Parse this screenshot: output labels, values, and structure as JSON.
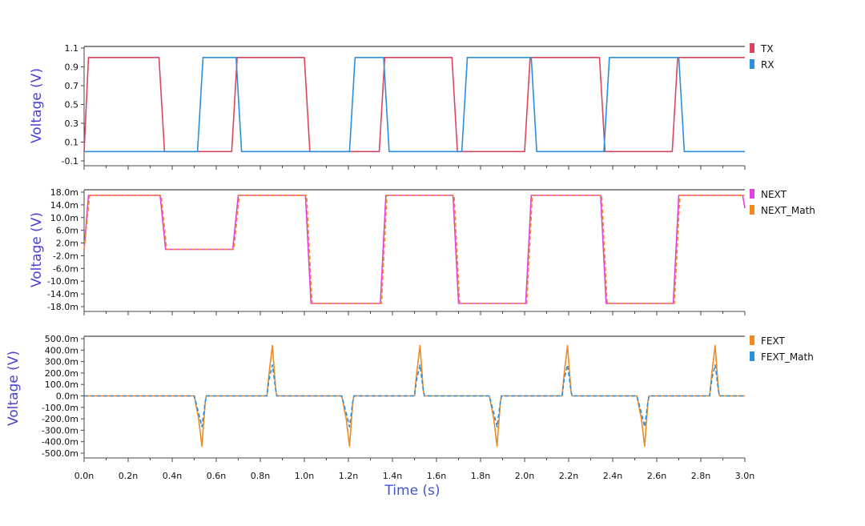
{
  "chart_data": [
    {
      "type": "line",
      "ylabel": "Voltage (V)",
      "y_ticks": [
        "1.1",
        "0.9",
        "0.7",
        "0.5",
        "0.3",
        "0.1",
        "-0.1"
      ],
      "ylim": [
        -0.1,
        1.1
      ],
      "xlim": [
        0,
        3.0
      ],
      "legend_position": "top-right",
      "series": [
        {
          "name": "TX",
          "color": "#d9455f",
          "style": "solid",
          "x": [
            0.0,
            0.02,
            0.035,
            0.34,
            0.365,
            0.67,
            0.695,
            1.0,
            1.025,
            1.34,
            1.365,
            1.67,
            1.695,
            2.0,
            2.025,
            2.34,
            2.365,
            2.67,
            2.695,
            3.0
          ],
          "y": [
            0.0,
            1.0,
            1.0,
            1.0,
            0.0,
            0.0,
            1.0,
            1.0,
            0.0,
            0.0,
            1.0,
            1.0,
            0.0,
            0.0,
            1.0,
            1.0,
            0.0,
            0.0,
            1.0,
            1.0
          ]
        },
        {
          "name": "RX",
          "color": "#2a8fe0",
          "style": "solid",
          "x": [
            0.0,
            0.37,
            0.515,
            0.54,
            0.69,
            0.715,
            1.03,
            1.205,
            1.23,
            1.36,
            1.385,
            1.7,
            1.715,
            1.74,
            2.03,
            2.055,
            2.36,
            2.385,
            2.7,
            2.725,
            3.0
          ],
          "y": [
            0.0,
            0.0,
            0.0,
            1.0,
            1.0,
            0.0,
            0.0,
            0.0,
            1.0,
            1.0,
            0.0,
            0.0,
            0.0,
            1.0,
            1.0,
            0.0,
            0.0,
            1.0,
            1.0,
            0.0,
            0.0
          ]
        }
      ]
    },
    {
      "type": "line",
      "ylabel": "Voltage (V)",
      "y_ticks": [
        "18.0m",
        "14.0m",
        "10.0m",
        "6.0m",
        "2.0m",
        "-2.0m",
        "-6.0m",
        "-10.0m",
        "-14.0m",
        "-18.0m"
      ],
      "ylim": [
        -0.018,
        0.018
      ],
      "xlim": [
        0,
        3.0
      ],
      "legend_position": "top-right",
      "series": [
        {
          "name": "NEXT",
          "color": "#e23fe0",
          "style": "solid",
          "x": [
            0.0,
            0.02,
            0.035,
            0.345,
            0.37,
            0.675,
            0.7,
            1.005,
            1.03,
            1.345,
            1.37,
            1.675,
            1.7,
            2.005,
            2.03,
            2.345,
            2.37,
            2.675,
            2.7,
            2.99,
            3.0
          ],
          "y": [
            0.0,
            0.017,
            0.017,
            0.017,
            0.0,
            0.0,
            0.017,
            0.017,
            -0.017,
            -0.017,
            0.017,
            0.017,
            -0.017,
            -0.017,
            0.017,
            0.017,
            -0.017,
            -0.017,
            0.017,
            0.017,
            0.013
          ]
        },
        {
          "name": "NEXT_Math",
          "color": "#f08a1c",
          "style": "dashed",
          "x": [
            0.0,
            0.025,
            0.04,
            0.35,
            0.375,
            0.68,
            0.705,
            1.01,
            1.035,
            1.35,
            1.375,
            1.68,
            1.705,
            2.01,
            2.035,
            2.35,
            2.375,
            2.68,
            2.705,
            3.0
          ],
          "y": [
            0.0,
            0.017,
            0.017,
            0.017,
            0.0,
            0.0,
            0.017,
            0.017,
            -0.017,
            -0.017,
            0.017,
            0.017,
            -0.017,
            -0.017,
            0.017,
            0.017,
            -0.017,
            -0.017,
            0.017,
            0.017
          ]
        }
      ]
    },
    {
      "type": "line",
      "xlabel": "Time (s)",
      "ylabel": "Voltage (V)",
      "x_ticks": [
        "0.0n",
        "0.2n",
        "0.4n",
        "0.6n",
        "0.8n",
        "1.0n",
        "1.2n",
        "1.4n",
        "1.6n",
        "1.8n",
        "2.0n",
        "2.2n",
        "2.4n",
        "2.6n",
        "2.8n",
        "3.0n"
      ],
      "y_ticks": [
        "500.0m",
        "400.0m",
        "300.0m",
        "200.0m",
        "100.0m",
        "0.0m",
        "-100.0m",
        "-200.0m",
        "-300.0m",
        "-400.0m",
        "-500.0m"
      ],
      "ylim": [
        -0.5,
        0.5
      ],
      "xlim": [
        0,
        3.0
      ],
      "legend_position": "top-right",
      "series": [
        {
          "name": "FEXT",
          "color": "#f08a1c",
          "style": "solid",
          "x": [
            0.0,
            0.5,
            0.52,
            0.535,
            0.55,
            0.555,
            0.83,
            0.84,
            0.855,
            0.87,
            0.875,
            1.17,
            1.19,
            1.205,
            1.22,
            1.225,
            1.5,
            1.51,
            1.525,
            1.54,
            1.545,
            1.84,
            1.86,
            1.875,
            1.89,
            1.895,
            2.17,
            2.18,
            2.195,
            2.21,
            2.215,
            2.51,
            2.53,
            2.545,
            2.56,
            2.565,
            2.84,
            2.85,
            2.865,
            2.88,
            2.885,
            3.0
          ],
          "y": [
            0.0,
            0.0,
            -0.2,
            -0.44,
            -0.05,
            0.0,
            0.0,
            0.2,
            0.44,
            0.05,
            0.0,
            0.0,
            -0.2,
            -0.44,
            -0.05,
            0.0,
            0.0,
            0.2,
            0.44,
            0.05,
            0.0,
            0.0,
            -0.2,
            -0.44,
            -0.05,
            0.0,
            0.0,
            0.2,
            0.44,
            0.05,
            0.0,
            0.0,
            -0.2,
            -0.44,
            -0.05,
            0.0,
            0.0,
            0.2,
            0.44,
            0.05,
            0.0,
            0.0
          ]
        },
        {
          "name": "FEXT_Math",
          "color": "#2a8fe0",
          "style": "dashed",
          "x": [
            0.0,
            0.5,
            0.52,
            0.535,
            0.55,
            0.555,
            0.83,
            0.84,
            0.855,
            0.87,
            0.875,
            1.17,
            1.19,
            1.205,
            1.22,
            1.225,
            1.5,
            1.51,
            1.525,
            1.54,
            1.545,
            1.84,
            1.86,
            1.875,
            1.89,
            1.895,
            2.17,
            2.18,
            2.195,
            2.21,
            2.215,
            2.51,
            2.53,
            2.545,
            2.56,
            2.565,
            2.84,
            2.85,
            2.865,
            2.88,
            2.885,
            3.0
          ],
          "y": [
            0.0,
            0.0,
            -0.15,
            -0.27,
            -0.05,
            0.0,
            0.0,
            0.15,
            0.27,
            0.05,
            0.0,
            0.0,
            -0.15,
            -0.27,
            -0.05,
            0.0,
            0.0,
            0.15,
            0.27,
            0.05,
            0.0,
            0.0,
            -0.15,
            -0.27,
            -0.05,
            0.0,
            0.0,
            0.15,
            0.27,
            0.05,
            0.0,
            0.0,
            -0.15,
            -0.27,
            -0.05,
            0.0,
            0.0,
            0.15,
            0.27,
            0.05,
            0.0,
            0.0
          ]
        }
      ]
    }
  ]
}
